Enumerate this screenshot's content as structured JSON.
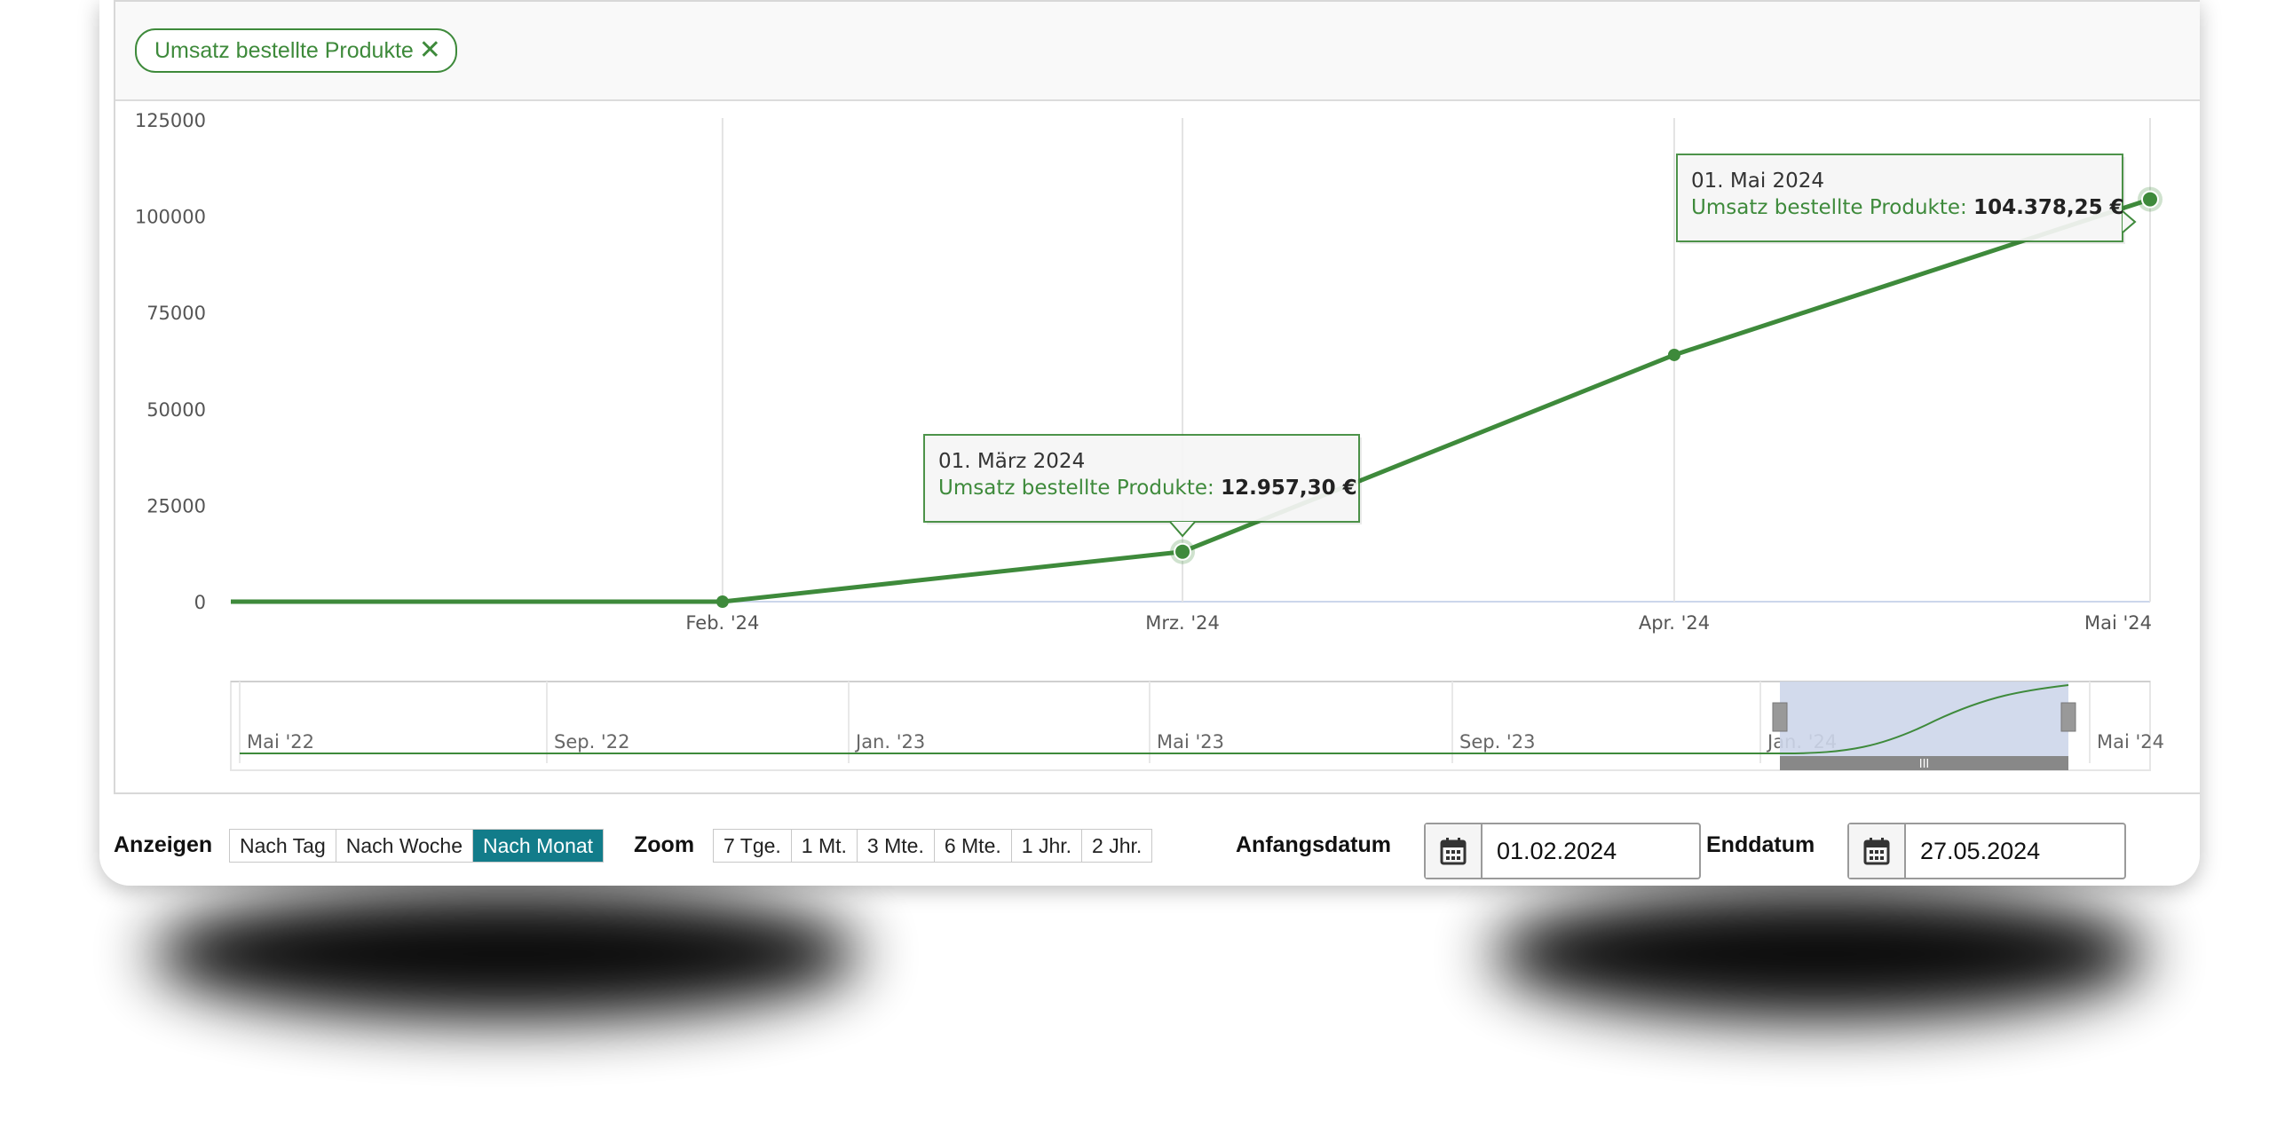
{
  "filter_chip": {
    "label": "Umsatz bestellte Produkte",
    "close_glyph": "✕"
  },
  "chart_data": {
    "type": "line",
    "series": [
      {
        "name": "Umsatz bestellte Produkte",
        "color": "#3e8a3b",
        "points": [
          {
            "x": "2024-01-01",
            "y": 0
          },
          {
            "x": "2024-02-01",
            "y": 0
          },
          {
            "x": "2024-03-01",
            "y": 12957.3
          },
          {
            "x": "2024-04-01",
            "y": 64000
          },
          {
            "x": "2024-05-01",
            "y": 104378.25
          }
        ]
      }
    ],
    "y_ticks": [
      "0",
      "25000",
      "50000",
      "75000",
      "100000",
      "125000"
    ],
    "ylim": [
      0,
      125000
    ],
    "x_ticks": [
      "Feb. '24",
      "Mrz. '24",
      "Apr. '24",
      "Mai '24"
    ],
    "grid": "vertical",
    "tooltips": [
      {
        "date": "01. März 2024",
        "label": "Umsatz bestellte Produkte:",
        "value": "12.957,30 €"
      },
      {
        "date": "01. Mai 2024",
        "label": "Umsatz bestellte Produkte:",
        "value": "104.378,25 €"
      }
    ],
    "navigator": {
      "labels": [
        "Mai '22",
        "Sep. '22",
        "Jan. '23",
        "Mai '23",
        "Sep. '23",
        "Jan. '24",
        "Mai '24"
      ],
      "selection_color": "#cdd6ea",
      "handle_glyph": "III"
    }
  },
  "controls": {
    "view_label": "Anzeigen",
    "view_buttons": [
      "Nach Tag",
      "Nach Woche",
      "Nach Monat"
    ],
    "view_active": "Nach Monat",
    "zoom_label": "Zoom",
    "zoom_buttons": [
      "7 Tge.",
      "1 Mt.",
      "3 Mte.",
      "6 Mte.",
      "1 Jhr.",
      "2 Jhr."
    ],
    "start_label": "Anfangsdatum",
    "start_value": "01.02.2024",
    "end_label": "Enddatum",
    "end_value": "27.05.2024"
  },
  "colors": {
    "line": "#3e8a3b",
    "active_button": "#127c8a",
    "grid": "#e3e3e3"
  },
  "icons": {
    "calendar": "calendar-icon",
    "close": "close-icon"
  }
}
